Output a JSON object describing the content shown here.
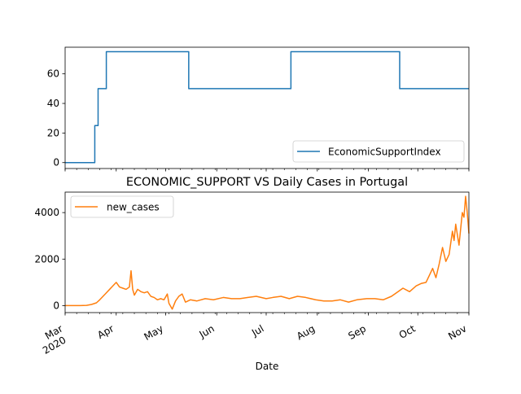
{
  "colors": {
    "economic": "#1f77b4",
    "cases": "#ff7f0e",
    "axis": "#000000",
    "background": "#ffffff"
  },
  "chart_data": [
    {
      "type": "line",
      "title": "",
      "xlabel": "",
      "ylabel": "",
      "grid": false,
      "legend_position": "lower-right",
      "xlim": [
        "2020-03-01",
        "2020-11-01"
      ],
      "ylim": [
        -4,
        78
      ],
      "yticks": [
        0,
        20,
        40,
        60
      ],
      "series": [
        {
          "name": "EconomicSupportIndex",
          "x": [
            "2020-03-01",
            "2020-03-19",
            "2020-03-19",
            "2020-03-21",
            "2020-03-21",
            "2020-03-26",
            "2020-03-26",
            "2020-05-15",
            "2020-05-15",
            "2020-07-16",
            "2020-07-16",
            "2020-09-20",
            "2020-09-20",
            "2020-11-01"
          ],
          "y": [
            0,
            0,
            25,
            25,
            50,
            50,
            75,
            75,
            50,
            50,
            75,
            75,
            50,
            50
          ]
        }
      ]
    },
    {
      "type": "line",
      "title": "ECONOMIC_SUPPORT VS Daily Cases in Portugal",
      "xlabel": "Date",
      "ylabel": "",
      "grid": false,
      "legend_position": "upper-left",
      "xlim": [
        "2020-03-01",
        "2020-11-01"
      ],
      "ylim": [
        -300,
        4880
      ],
      "yticks": [
        0,
        2000,
        4000
      ],
      "xticks": [
        {
          "date": "2020-03-01",
          "label": "Mar",
          "sublabel": "2020"
        },
        {
          "date": "2020-04-01",
          "label": "Apr"
        },
        {
          "date": "2020-05-01",
          "label": "May"
        },
        {
          "date": "2020-06-01",
          "label": "Jun"
        },
        {
          "date": "2020-07-01",
          "label": "Jul"
        },
        {
          "date": "2020-08-01",
          "label": "Aug"
        },
        {
          "date": "2020-09-01",
          "label": "Sep"
        },
        {
          "date": "2020-10-01",
          "label": "Oct"
        },
        {
          "date": "2020-11-01",
          "label": "Nov"
        }
      ],
      "series": [
        {
          "name": "new_cases",
          "x": [
            "2020-03-01",
            "2020-03-10",
            "2020-03-14",
            "2020-03-17",
            "2020-03-20",
            "2020-03-22",
            "2020-03-24",
            "2020-03-26",
            "2020-03-28",
            "2020-03-30",
            "2020-04-01",
            "2020-04-03",
            "2020-04-05",
            "2020-04-07",
            "2020-04-09",
            "2020-04-10",
            "2020-04-11",
            "2020-04-12",
            "2020-04-14",
            "2020-04-16",
            "2020-04-18",
            "2020-04-20",
            "2020-04-22",
            "2020-04-24",
            "2020-04-26",
            "2020-04-28",
            "2020-04-30",
            "2020-05-02",
            "2020-05-03",
            "2020-05-05",
            "2020-05-07",
            "2020-05-09",
            "2020-05-11",
            "2020-05-13",
            "2020-05-16",
            "2020-05-20",
            "2020-05-25",
            "2020-05-30",
            "2020-06-05",
            "2020-06-10",
            "2020-06-15",
            "2020-06-20",
            "2020-06-25",
            "2020-07-01",
            "2020-07-05",
            "2020-07-10",
            "2020-07-15",
            "2020-07-20",
            "2020-07-25",
            "2020-07-31",
            "2020-08-05",
            "2020-08-10",
            "2020-08-15",
            "2020-08-20",
            "2020-08-25",
            "2020-08-31",
            "2020-09-05",
            "2020-09-10",
            "2020-09-15",
            "2020-09-18",
            "2020-09-22",
            "2020-09-26",
            "2020-09-30",
            "2020-10-03",
            "2020-10-06",
            "2020-10-08",
            "2020-10-10",
            "2020-10-12",
            "2020-10-14",
            "2020-10-16",
            "2020-10-18",
            "2020-10-20",
            "2020-10-22",
            "2020-10-23",
            "2020-10-24",
            "2020-10-26",
            "2020-10-28",
            "2020-10-29",
            "2020-10-30",
            "2020-10-31",
            "2020-11-01"
          ],
          "y": [
            0,
            2,
            10,
            50,
            120,
            250,
            400,
            550,
            700,
            850,
            1000,
            800,
            750,
            700,
            800,
            1500,
            700,
            450,
            700,
            600,
            550,
            600,
            400,
            350,
            250,
            300,
            250,
            500,
            100,
            -150,
            200,
            400,
            500,
            150,
            250,
            200,
            300,
            250,
            350,
            300,
            300,
            350,
            400,
            300,
            350,
            400,
            300,
            400,
            350,
            250,
            200,
            200,
            250,
            150,
            250,
            300,
            300,
            250,
            400,
            550,
            750,
            600,
            850,
            950,
            1000,
            1300,
            1600,
            1200,
            1800,
            2500,
            1900,
            2200,
            3200,
            2800,
            3500,
            2600,
            4000,
            3800,
            4700,
            4000,
            3100
          ]
        }
      ]
    }
  ]
}
